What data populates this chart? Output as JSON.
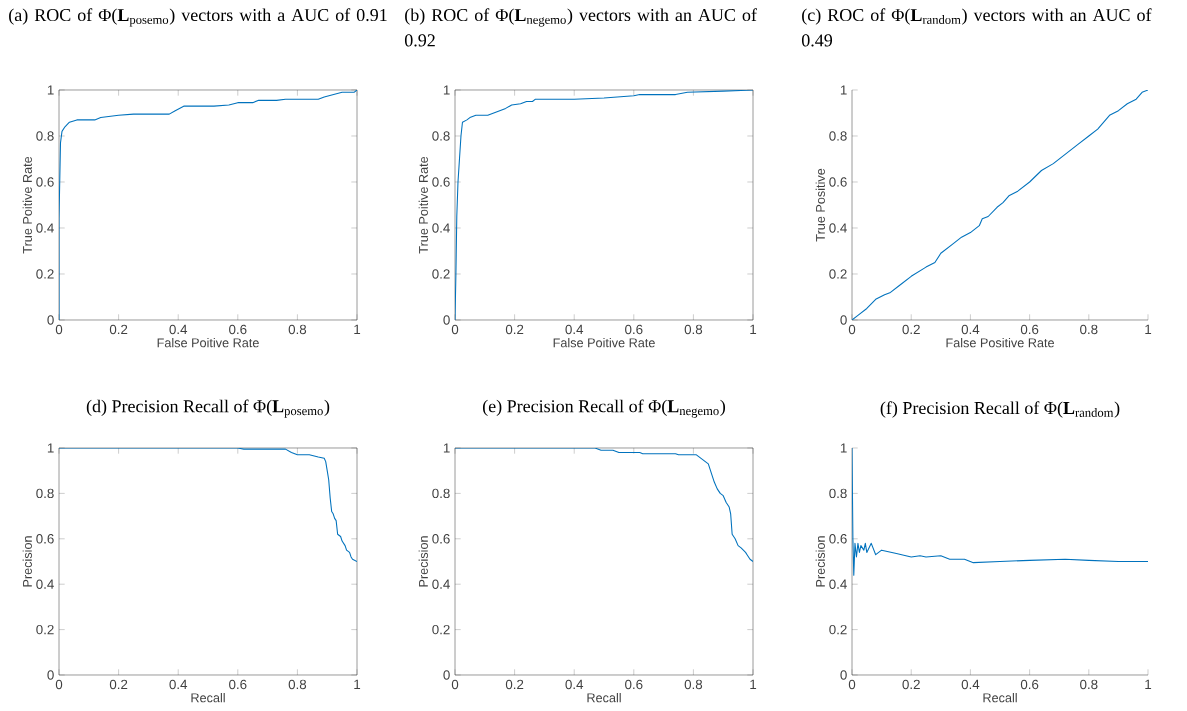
{
  "chart_data": [
    {
      "type": "line",
      "title": "(a) ROC of Φ(**L**$_{posemo}$) vectors with a AUC of 0.91",
      "xlabel": "False Poitive Rate",
      "ylabel": "True Poitive Rate",
      "color": "#0072bd",
      "xlim": [
        0,
        1
      ],
      "ylim": [
        0,
        1
      ],
      "xticks": [
        0,
        0.2,
        0.4,
        0.6,
        0.8,
        1
      ],
      "yticks": [
        0,
        0.2,
        0.4,
        0.6,
        0.8,
        1
      ],
      "x": [
        0,
        0,
        0.005,
        0.01,
        0.02,
        0.035,
        0.06,
        0.12,
        0.14,
        0.2,
        0.25,
        0.37,
        0.39,
        0.42,
        0.52,
        0.57,
        0.6,
        0.65,
        0.67,
        0.73,
        0.76,
        0.87,
        0.89,
        0.92,
        0.95,
        0.99,
        1
      ],
      "values": [
        0,
        0.44,
        0.77,
        0.82,
        0.84,
        0.86,
        0.87,
        0.87,
        0.88,
        0.89,
        0.895,
        0.895,
        0.91,
        0.93,
        0.93,
        0.935,
        0.945,
        0.945,
        0.955,
        0.955,
        0.96,
        0.96,
        0.97,
        0.98,
        0.99,
        0.99,
        1
      ]
    },
    {
      "type": "line",
      "title": "(b) ROC of Φ(**L**$_{negemo}$) vectors with an AUC of 0.92",
      "xlabel": "False Poitive Rate",
      "ylabel": "True Poitive Rate",
      "color": "#0072bd",
      "xlim": [
        0,
        1
      ],
      "ylim": [
        0,
        1
      ],
      "xticks": [
        0,
        0.2,
        0.4,
        0.6,
        0.8,
        1
      ],
      "yticks": [
        0,
        0.2,
        0.4,
        0.6,
        0.8,
        1
      ],
      "x": [
        0,
        0.003,
        0.006,
        0.01,
        0.015,
        0.02,
        0.025,
        0.04,
        0.05,
        0.07,
        0.11,
        0.13,
        0.15,
        0.17,
        0.19,
        0.22,
        0.24,
        0.26,
        0.27,
        0.4,
        0.5,
        0.6,
        0.62,
        0.74,
        0.78,
        0.9,
        1
      ],
      "values": [
        0,
        0.2,
        0.45,
        0.6,
        0.7,
        0.8,
        0.86,
        0.87,
        0.88,
        0.89,
        0.89,
        0.9,
        0.91,
        0.92,
        0.935,
        0.94,
        0.95,
        0.95,
        0.96,
        0.96,
        0.965,
        0.975,
        0.98,
        0.98,
        0.99,
        0.995,
        1
      ]
    },
    {
      "type": "line",
      "title": "(c) ROC of Φ(**L**$_{random}$) vectors with an AUC of 0.49",
      "xlabel": "False Positive Rate",
      "ylabel": "True Positive",
      "color": "#0072bd",
      "xlim": [
        0,
        1
      ],
      "ylim": [
        0,
        1
      ],
      "xticks": [
        0,
        0.2,
        0.4,
        0.6,
        0.8,
        1
      ],
      "yticks": [
        0,
        0.2,
        0.4,
        0.6,
        0.8,
        1
      ],
      "x": [
        0,
        0.02,
        0.05,
        0.08,
        0.11,
        0.13,
        0.16,
        0.2,
        0.25,
        0.28,
        0.3,
        0.34,
        0.37,
        0.4,
        0.43,
        0.44,
        0.46,
        0.49,
        0.51,
        0.53,
        0.56,
        0.6,
        0.64,
        0.68,
        0.72,
        0.76,
        0.8,
        0.83,
        0.87,
        0.9,
        0.93,
        0.96,
        0.98,
        1
      ],
      "values": [
        0,
        0.02,
        0.05,
        0.09,
        0.11,
        0.12,
        0.15,
        0.19,
        0.23,
        0.25,
        0.29,
        0.33,
        0.36,
        0.38,
        0.41,
        0.44,
        0.45,
        0.49,
        0.51,
        0.54,
        0.56,
        0.6,
        0.65,
        0.68,
        0.72,
        0.76,
        0.8,
        0.83,
        0.89,
        0.91,
        0.94,
        0.96,
        0.99,
        1
      ]
    },
    {
      "type": "line",
      "title": "(d) Precision Recall of Φ(**L**$_{posemo}$)",
      "xlabel": "Recall",
      "ylabel": "Precision",
      "color": "#0072bd",
      "xlim": [
        0,
        1
      ],
      "ylim": [
        0,
        1
      ],
      "xticks": [
        0,
        0.2,
        0.4,
        0.6,
        0.8,
        1
      ],
      "yticks": [
        0,
        0.2,
        0.4,
        0.6,
        0.8,
        1
      ],
      "x": [
        0,
        0.6,
        0.62,
        0.76,
        0.78,
        0.8,
        0.84,
        0.87,
        0.89,
        0.895,
        0.9,
        0.905,
        0.91,
        0.915,
        0.92,
        0.925,
        0.93,
        0.935,
        0.945,
        0.95,
        0.96,
        0.965,
        0.975,
        0.98,
        0.985,
        1
      ],
      "values": [
        1,
        1,
        0.995,
        0.995,
        0.98,
        0.97,
        0.97,
        0.96,
        0.955,
        0.94,
        0.9,
        0.86,
        0.78,
        0.72,
        0.71,
        0.69,
        0.68,
        0.62,
        0.61,
        0.59,
        0.57,
        0.55,
        0.54,
        0.52,
        0.51,
        0.5
      ]
    },
    {
      "type": "line",
      "title": "(e) Precision Recall of Φ(**L**$_{negemo}$)",
      "xlabel": "Recall",
      "ylabel": "Precision",
      "color": "#0072bd",
      "xlim": [
        0,
        1
      ],
      "ylim": [
        0,
        1
      ],
      "xticks": [
        0,
        0.2,
        0.4,
        0.6,
        0.8,
        1
      ],
      "yticks": [
        0,
        0.2,
        0.4,
        0.6,
        0.8,
        1
      ],
      "x": [
        0,
        0.47,
        0.49,
        0.53,
        0.55,
        0.62,
        0.63,
        0.74,
        0.75,
        0.81,
        0.83,
        0.85,
        0.86,
        0.87,
        0.88,
        0.89,
        0.9,
        0.91,
        0.92,
        0.925,
        0.93,
        0.94,
        0.95,
        0.96,
        0.975,
        0.98,
        0.99,
        1
      ],
      "values": [
        1,
        1,
        0.99,
        0.99,
        0.98,
        0.98,
        0.975,
        0.975,
        0.97,
        0.97,
        0.95,
        0.93,
        0.89,
        0.85,
        0.82,
        0.8,
        0.79,
        0.76,
        0.74,
        0.71,
        0.62,
        0.6,
        0.57,
        0.56,
        0.54,
        0.53,
        0.51,
        0.5
      ]
    },
    {
      "type": "line",
      "title": "(f) Precision Recall of Φ(**L**$_{random}$)",
      "xlabel": "Recall",
      "ylabel": "Precision",
      "color": "#0072bd",
      "xlim": [
        0,
        1
      ],
      "ylim": [
        0,
        1
      ],
      "xticks": [
        0,
        0.2,
        0.4,
        0.6,
        0.8,
        1
      ],
      "yticks": [
        0,
        0.2,
        0.4,
        0.6,
        0.8,
        1
      ],
      "x": [
        0,
        0.003,
        0.006,
        0.01,
        0.015,
        0.02,
        0.025,
        0.03,
        0.04,
        0.045,
        0.05,
        0.065,
        0.08,
        0.09,
        0.1,
        0.15,
        0.2,
        0.23,
        0.25,
        0.3,
        0.33,
        0.38,
        0.41,
        0.5,
        0.6,
        0.72,
        0.8,
        0.9,
        1
      ],
      "values": [
        1,
        0.6,
        0.44,
        0.58,
        0.52,
        0.58,
        0.54,
        0.57,
        0.55,
        0.58,
        0.54,
        0.58,
        0.53,
        0.54,
        0.55,
        0.535,
        0.52,
        0.525,
        0.52,
        0.525,
        0.51,
        0.51,
        0.495,
        0.5,
        0.505,
        0.51,
        0.505,
        0.5,
        0.5
      ]
    }
  ]
}
